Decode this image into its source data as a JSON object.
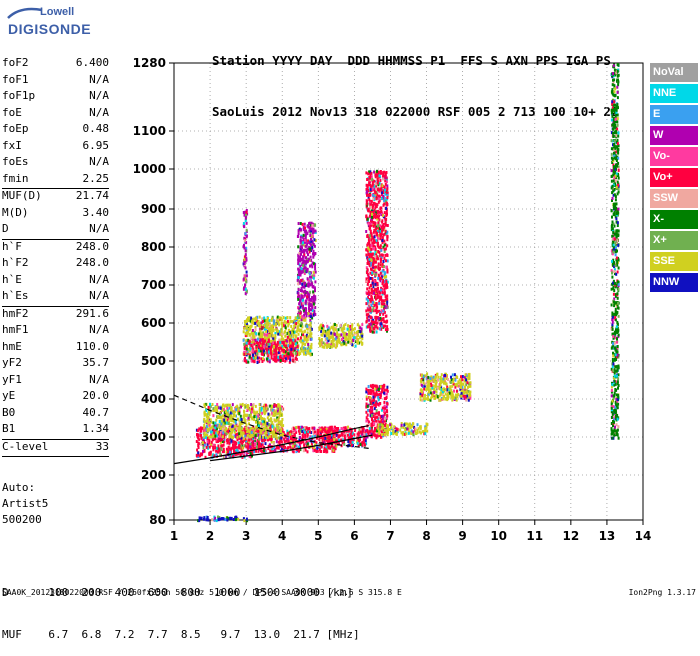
{
  "logo": {
    "line1": "Lowell",
    "line2": "DIGISONDE"
  },
  "header": {
    "row1": "Station YYYY DAY  DDD HHMMSS P1  FFS S AXN PPS IGA PS",
    "row2": "SaoLuis 2012 Nov13 318 022000 RSF 005 2 713 100 10+ 22"
  },
  "params_groups": [
    [
      [
        "foF2",
        "6.400"
      ],
      [
        "foF1",
        "N/A"
      ],
      [
        "foF1p",
        "N/A"
      ],
      [
        "foE",
        "N/A"
      ],
      [
        "foEp",
        "0.48"
      ],
      [
        "fxI",
        "6.95"
      ],
      [
        "foEs",
        "N/A"
      ],
      [
        "fmin",
        "2.25"
      ]
    ],
    [
      [
        "MUF(D)",
        "21.74"
      ],
      [
        "M(D)",
        "3.40"
      ],
      [
        "D",
        "N/A"
      ]
    ],
    [
      [
        "h`F",
        "248.0"
      ],
      [
        "h`F2",
        "248.0"
      ],
      [
        "h`E",
        "N/A"
      ],
      [
        "h`Es",
        "N/A"
      ]
    ],
    [
      [
        "hmF2",
        "291.6"
      ],
      [
        "hmF1",
        "N/A"
      ],
      [
        "hmE",
        "110.0"
      ],
      [
        "yF2",
        "35.7"
      ],
      [
        "yF1",
        "N/A"
      ],
      [
        "yE",
        "20.0"
      ],
      [
        "B0",
        "40.7"
      ],
      [
        "B1",
        "1.34"
      ]
    ],
    [
      [
        "C-level",
        "33"
      ]
    ]
  ],
  "auto": {
    "line1": "Auto:",
    "line2": "Artist5",
    "line3": "500200"
  },
  "legend": [
    {
      "label": "NoVal",
      "color": "#a0a0a0"
    },
    {
      "label": "NNE",
      "color": "#00d8e8"
    },
    {
      "label": "E",
      "color": "#3aa0f0"
    },
    {
      "label": "W",
      "color": "#b000b0"
    },
    {
      "label": "Vo-",
      "color": "#ff3aa0"
    },
    {
      "label": "Vo+",
      "color": "#ff0040"
    },
    {
      "label": "SSW",
      "color": "#f0a8a0"
    },
    {
      "label": "X-",
      "color": "#008000"
    },
    {
      "label": "X+",
      "color": "#70b050"
    },
    {
      "label": "SSE",
      "color": "#d0d020"
    },
    {
      "label": "NNW",
      "color": "#1010c0"
    }
  ],
  "muf_table": {
    "d_label": "D",
    "d_values": [
      "100",
      "200",
      "400",
      "600",
      "800",
      "1000",
      "1500",
      "3000"
    ],
    "d_unit": "[km]",
    "muf_label": "MUF",
    "muf_values": [
      "6.7",
      "6.8",
      "7.2",
      "7.7",
      "8.5",
      "9.7",
      "13.0",
      "21.7"
    ],
    "muf_unit": "[MHz]"
  },
  "footer": "SAA0K_2012318022000.RSF / 260fx256h 50 kHz 5.0 km / DPS-4 SAA0K 903 / 2.6 S 315.8 E",
  "version": "Ion2Png 1.3.17",
  "chart_data": {
    "type": "scatter",
    "xlim": [
      1,
      14
    ],
    "x_ticks": [
      "1",
      "2",
      "3",
      "4",
      "5",
      "6",
      "7",
      "8",
      "9",
      "10",
      "11",
      "12",
      "13",
      "14"
    ],
    "y_scale": "log",
    "ylim": [
      80,
      1280
    ],
    "y_ticks": [
      "80",
      "200",
      "300",
      "400",
      "500",
      "600",
      "700",
      "800",
      "900",
      "1000",
      "1100",
      "1280"
    ],
    "grid": "dotted",
    "traces": {
      "o_trace_upper": [
        [
          1.0,
          230
        ],
        [
          2.0,
          245
        ],
        [
          3.0,
          262
        ],
        [
          4.0,
          280
        ],
        [
          5.0,
          300
        ],
        [
          6.0,
          322
        ],
        [
          6.4,
          330
        ]
      ],
      "o_trace_lower": [
        [
          2.0,
          238
        ],
        [
          3.0,
          250
        ],
        [
          4.0,
          262
        ],
        [
          5.0,
          278
        ],
        [
          6.0,
          296
        ],
        [
          6.5,
          305
        ]
      ],
      "dashed_profile": [
        [
          1.0,
          410
        ],
        [
          2.0,
          370
        ],
        [
          3.0,
          335
        ],
        [
          4.0,
          305
        ],
        [
          5.0,
          285
        ],
        [
          6.0,
          275
        ],
        [
          6.4,
          270
        ]
      ]
    },
    "echo_clusters": [
      {
        "x": [
          1.6,
          3.2
        ],
        "y": [
          250,
          330
        ],
        "mode": "Vo+"
      },
      {
        "x": [
          3.0,
          5.5
        ],
        "y": [
          265,
          330
        ],
        "mode": "Vo+"
      },
      {
        "x": [
          5.0,
          6.3
        ],
        "y": [
          280,
          330
        ],
        "mode": "Vo+"
      },
      {
        "x": [
          1.8,
          4.0
        ],
        "y": [
          300,
          390
        ],
        "mode": "SSE"
      },
      {
        "x": [
          2.9,
          4.8
        ],
        "y": [
          520,
          620
        ],
        "mode": "SSE"
      },
      {
        "x": [
          2.9,
          4.4
        ],
        "y": [
          500,
          560
        ],
        "mode": "Vo+"
      },
      {
        "x": [
          5.0,
          6.2
        ],
        "y": [
          540,
          600
        ],
        "mode": "SSE"
      },
      {
        "x": [
          6.3,
          6.9
        ],
        "y": [
          300,
          440
        ],
        "mode": "Vo+"
      },
      {
        "x": [
          6.6,
          8.0
        ],
        "y": [
          310,
          340
        ],
        "mode": "SSE"
      },
      {
        "x": [
          7.8,
          9.2
        ],
        "y": [
          400,
          470
        ],
        "mode": "SSE"
      },
      {
        "x": [
          2.9,
          3.0
        ],
        "y": [
          680,
          900
        ],
        "mode": "W"
      },
      {
        "x": [
          4.4,
          4.9
        ],
        "y": [
          620,
          870
        ],
        "mode": "W"
      },
      {
        "x": [
          6.3,
          6.9
        ],
        "y": [
          580,
          1000
        ],
        "mode": "Vo+"
      },
      {
        "x": [
          1.6,
          3.0
        ],
        "y": [
          82,
          92
        ],
        "mode": "NNW"
      },
      {
        "x": [
          13.1,
          13.3
        ],
        "y": [
          300,
          1280
        ],
        "mode": "X-"
      }
    ]
  }
}
